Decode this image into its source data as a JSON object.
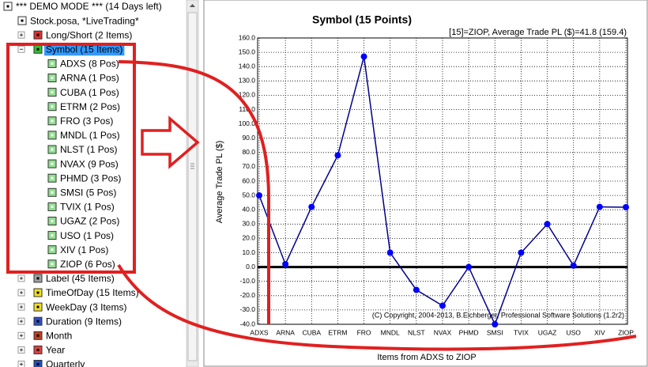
{
  "tree": {
    "label": "*** DEMO MODE *** (14 Days left)",
    "children": [
      {
        "label": "Stock.posa, *LiveTrading*",
        "children": [
          {
            "label": "Long/Short (2 Items)"
          },
          {
            "label": "Symbol (15 Items)",
            "children": [
              {
                "label": "ADXS (8 Pos)"
              },
              {
                "label": "ARNA (1 Pos)"
              },
              {
                "label": "CUBA (1 Pos)"
              },
              {
                "label": "ETRM (2 Pos)"
              },
              {
                "label": "FRO (3 Pos)"
              },
              {
                "label": "MNDL (1 Pos)"
              },
              {
                "label": "NLST (1 Pos)"
              },
              {
                "label": "NVAX (9 Pos)"
              },
              {
                "label": "PHMD (3 Pos)"
              },
              {
                "label": "SMSI (5 Pos)"
              },
              {
                "label": "TVIX (1 Pos)"
              },
              {
                "label": "UGAZ (2 Pos)"
              },
              {
                "label": "USO (1 Pos)"
              },
              {
                "label": "XIV (1 Pos)"
              },
              {
                "label": "ZIOP (6 Pos)"
              }
            ]
          },
          {
            "label": "Label (45 Items)"
          },
          {
            "label": "TimeOfDay (15 Items)"
          },
          {
            "label": "WeekDay (3 Items)"
          },
          {
            "label": "Duration (9 Items)"
          },
          {
            "label": "Month"
          },
          {
            "label": "Year"
          },
          {
            "label": "Quarterly"
          }
        ]
      }
    ]
  },
  "chart_data": {
    "type": "line",
    "title": "Symbol (15 Points)",
    "subtitle": "[15]=ZIOP,   Average Trade PL ($)=41.8 (159.4)",
    "x_label": "Items from ADXS to ZIOP",
    "y_label": "Average Trade PL ($)",
    "annotation": "(C) Copyright, 2004-2013, B.Eichberger, Professional Software Solutions (1.2r2)",
    "categories": [
      "ADXS",
      "ARNA",
      "CUBA",
      "ETRM",
      "FRO",
      "MNDL",
      "NLST",
      "NVAX",
      "PHMD",
      "SMSI",
      "TVIX",
      "UGAZ",
      "USO",
      "XIV",
      "ZIOP"
    ],
    "values": [
      50,
      2,
      42,
      78,
      147,
      10,
      -16,
      -27,
      0,
      -40,
      10,
      30,
      1,
      42,
      41.8
    ],
    "color": "#00008b",
    "marker_color": "#0000ff",
    "ylim": [
      -40,
      160
    ],
    "yticks": [
      {
        "value": -40,
        "label": "-40.0"
      },
      {
        "value": -30,
        "label": "-30.0"
      },
      {
        "value": -20,
        "label": "-20.0"
      },
      {
        "value": -10,
        "label": "-10.0"
      },
      {
        "value": 0,
        "label": "0.0"
      },
      {
        "value": 10,
        "label": "10.0"
      },
      {
        "value": 20,
        "label": "20.0"
      },
      {
        "value": 30,
        "label": "30.0"
      },
      {
        "value": 40,
        "label": "40.0"
      },
      {
        "value": 50,
        "label": "50.0"
      },
      {
        "value": 60,
        "label": "60.0"
      },
      {
        "value": 70,
        "label": "70.0"
      },
      {
        "value": 80,
        "label": "80.0"
      },
      {
        "value": 90,
        "label": "90.0"
      },
      {
        "value": 100,
        "label": "100.0"
      },
      {
        "value": 110,
        "label": "110.0"
      },
      {
        "value": 120,
        "label": "120.0"
      },
      {
        "value": 130,
        "label": "130.0"
      },
      {
        "value": 140,
        "label": "140.0"
      },
      {
        "value": 150,
        "label": "150.0"
      },
      {
        "value": 160,
        "label": "160.0"
      }
    ],
    "grid": true
  }
}
